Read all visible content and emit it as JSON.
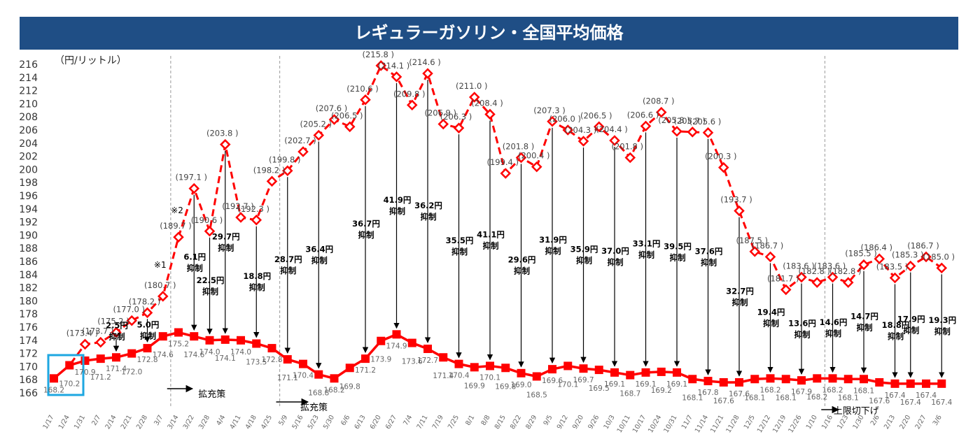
{
  "title": "レギュラーガソリン・全国平均価格",
  "unit_label": "（円/リットル）",
  "colors": {
    "header": "#1f4e85",
    "series": "#ff0000",
    "highlight": "#1ea7e1"
  },
  "chart_data": {
    "type": "line",
    "title": "レギュラーガソリン・全国平均価格",
    "ylabel": "（円/リットル）",
    "ylim": [
      166,
      216
    ],
    "yticks": [
      166,
      168,
      170,
      172,
      174,
      176,
      178,
      180,
      182,
      184,
      186,
      188,
      190,
      192,
      194,
      196,
      198,
      200,
      202,
      204,
      206,
      208,
      210,
      212,
      214,
      216
    ],
    "categories": [
      "1/17",
      "1/24",
      "1/31",
      "2/7",
      "2/14",
      "2/21",
      "2/28",
      "3/7",
      "3/14",
      "3/22",
      "3/28",
      "4/4",
      "4/11",
      "4/18",
      "4/25",
      "5/9",
      "5/16",
      "5/23",
      "5/30",
      "6/6",
      "6/13",
      "6/20",
      "6/27",
      "7/4",
      "7/11",
      "7/19",
      "7/25",
      "8/1",
      "8/8",
      "8/15",
      "8/22",
      "8/29",
      "9/5",
      "9/12",
      "9/20",
      "9/26",
      "10/3",
      "10/11",
      "10/17",
      "10/24",
      "10/31",
      "11/7",
      "11/14",
      "11/21",
      "11/28",
      "12/5",
      "12/12",
      "12/19",
      "12/26",
      "1/10",
      "1/16",
      "1/23",
      "1/30",
      "2/6",
      "2/13",
      "2/20",
      "2/27",
      "3/6"
    ],
    "series": [
      {
        "name": "補助なし価格",
        "values": [
          168.2,
          170.2,
          173.4,
          173.7,
          175.2,
          177.0,
          178.2,
          180.7,
          189.7,
          197.1,
          190.6,
          203.8,
          192.7,
          192.3,
          198.2,
          199.8,
          202.7,
          205.2,
          207.6,
          206.5,
          210.6,
          215.8,
          214.1,
          209.8,
          214.6,
          206.9,
          206.3,
          211.0,
          208.4,
          199.4,
          201.8,
          200.4,
          207.3,
          206.0,
          204.3,
          206.5,
          204.4,
          201.8,
          206.6,
          208.7,
          205.8,
          205.7,
          205.6,
          200.3,
          193.7,
          187.5,
          186.7,
          181.7,
          183.6,
          182.8,
          183.6,
          182.8,
          185.5,
          186.4,
          183.5,
          185.3,
          186.7,
          185.0
        ],
        "labels": [
          "",
          "",
          "(173.4 )",
          "(173.7 )",
          "(175.2 )",
          "(177.0 )",
          "(178.2 )",
          "(180.7 )",
          "(189.7 )",
          "(197.1 )",
          "(190.6 )",
          "(203.8 )",
          "(192.7 )",
          "(192.3 )",
          "(198.2 )",
          "(199.8 )",
          "(202.7 )",
          "(205.2 )",
          "(207.6 )",
          "(206.5 )",
          "(210.6 )",
          "(215.8 )",
          "(214.1 )",
          "(209.8 )",
          "(214.6 )",
          "(206.9 )",
          "(206.3 )",
          "(211.0 )",
          "(208.4 )",
          "(199.4 )",
          "(201.8 )",
          "(200.4 )",
          "(207.3 )",
          "(206.0 )",
          "(204.3 )",
          "(206.5 )",
          "(204.4 )",
          "(201.8 )",
          "(206.6 )",
          "(208.7 )",
          "(205.8 )",
          "(205.7 )",
          "(205.6 )",
          "(200.3 )",
          "(193.7 )",
          "(187.5 )",
          "(186.7 )",
          "(181.7 )",
          "(183.6 )",
          "(182.8 )",
          "(183.6 )",
          "(182.8 )",
          "(185.5 )",
          "(186.4 )",
          "(183.5 )",
          "(185.3 )",
          "(186.7 )",
          "(185.0 )"
        ]
      },
      {
        "name": "全国平均価格",
        "values": [
          168.2,
          170.2,
          170.9,
          171.2,
          171.4,
          172.0,
          172.8,
          174.6,
          175.2,
          174.6,
          174.0,
          174.1,
          174.0,
          173.5,
          172.8,
          171.1,
          170.4,
          168.8,
          168.2,
          169.8,
          171.2,
          173.9,
          174.9,
          173.6,
          172.7,
          171.4,
          170.4,
          169.9,
          170.1,
          169.8,
          169.0,
          168.5,
          169.6,
          170.1,
          169.7,
          169.5,
          169.1,
          168.7,
          169.1,
          169.2,
          169.1,
          168.1,
          167.8,
          167.6,
          167.6,
          168.1,
          168.2,
          168.1,
          167.9,
          168.2,
          168.2,
          168.1,
          168.1,
          167.6,
          167.4,
          167.4,
          167.4,
          167.4
        ],
        "labels": [
          "168.2",
          "170.2",
          "170.9",
          "171.2",
          "171.4",
          "172.0",
          "172.8",
          "174.6",
          "175.2",
          "174.6",
          "174.0",
          "174.1",
          "174.0",
          "173.5",
          "172.8",
          "171.1",
          "170.4",
          "168.8",
          "168.2",
          "169.8",
          "171.2",
          "173.9",
          "174.9",
          "173.6",
          "172.7",
          "171.4",
          "170.4",
          "169.9",
          "170.1",
          "169.8",
          "169.0",
          "168.5",
          "169.6",
          "170.1",
          "169.7",
          "169.5",
          "169.1",
          "168.7",
          "169.1",
          "169.2",
          "169.1",
          "168.1",
          "167.8",
          "167.6",
          "167.6",
          "168.1",
          "168.2",
          "168.1",
          "167.9",
          "168.2",
          "168.2",
          "168.1",
          "168.1",
          "167.6",
          "167.4",
          "167.4",
          "167.4",
          "167.4"
        ]
      }
    ],
    "subsidies": [
      {
        "i": 4,
        "amount": "2.5円",
        "suffix": "抑制"
      },
      {
        "i": 6,
        "amount": "5.0円",
        "suffix": "抑制"
      },
      {
        "i": 9,
        "amount": "6.1円",
        "suffix": "抑制"
      },
      {
        "i": 10,
        "amount": "22.5円",
        "suffix": "抑制"
      },
      {
        "i": 11,
        "amount": "29.7円",
        "suffix": "抑制"
      },
      {
        "i": 13,
        "amount": "18.8円",
        "suffix": "抑制"
      },
      {
        "i": 15,
        "amount": "28.7円",
        "suffix": "抑制"
      },
      {
        "i": 17,
        "amount": "36.4円",
        "suffix": "抑制"
      },
      {
        "i": 20,
        "amount": "36.7円",
        "suffix": "抑制"
      },
      {
        "i": 22,
        "amount": "41.9円",
        "suffix": "抑制"
      },
      {
        "i": 24,
        "amount": "36.2円",
        "suffix": "抑制"
      },
      {
        "i": 26,
        "amount": "35.5円",
        "suffix": "抑制"
      },
      {
        "i": 28,
        "amount": "41.1円",
        "suffix": "抑制"
      },
      {
        "i": 30,
        "amount": "29.6円",
        "suffix": "抑制"
      },
      {
        "i": 32,
        "amount": "31.9円",
        "suffix": "抑制"
      },
      {
        "i": 34,
        "amount": "35.9円",
        "suffix": "抑制"
      },
      {
        "i": 36,
        "amount": "37.0円",
        "suffix": "抑制"
      },
      {
        "i": 38,
        "amount": "33.1円",
        "suffix": "抑制"
      },
      {
        "i": 40,
        "amount": "39.5円",
        "suffix": "抑制"
      },
      {
        "i": 42,
        "amount": "37.6円",
        "suffix": "抑制"
      },
      {
        "i": 44,
        "amount": "32.7円",
        "suffix": "抑制"
      },
      {
        "i": 46,
        "amount": "19.4円",
        "suffix": "抑制"
      },
      {
        "i": 48,
        "amount": "13.6円",
        "suffix": "抑制"
      },
      {
        "i": 50,
        "amount": "14.6円",
        "suffix": "抑制"
      },
      {
        "i": 52,
        "amount": "14.7円",
        "suffix": "抑制"
      },
      {
        "i": 54,
        "amount": "18.8円",
        "suffix": "抑制"
      },
      {
        "i": 55,
        "amount": "17.9円",
        "suffix": "抑制"
      },
      {
        "i": 57,
        "amount": "19.3円",
        "suffix": "抑制"
      }
    ],
    "annotations": [
      {
        "text": "※1",
        "i": 7
      },
      {
        "text": "※2",
        "i": 8
      },
      {
        "text": "拡充策",
        "i": 7
      },
      {
        "text": "拡充策",
        "i": 14
      },
      {
        "text": "上限切下げ",
        "i": 49
      }
    ],
    "vlines_after": [
      7,
      14,
      49
    ]
  }
}
